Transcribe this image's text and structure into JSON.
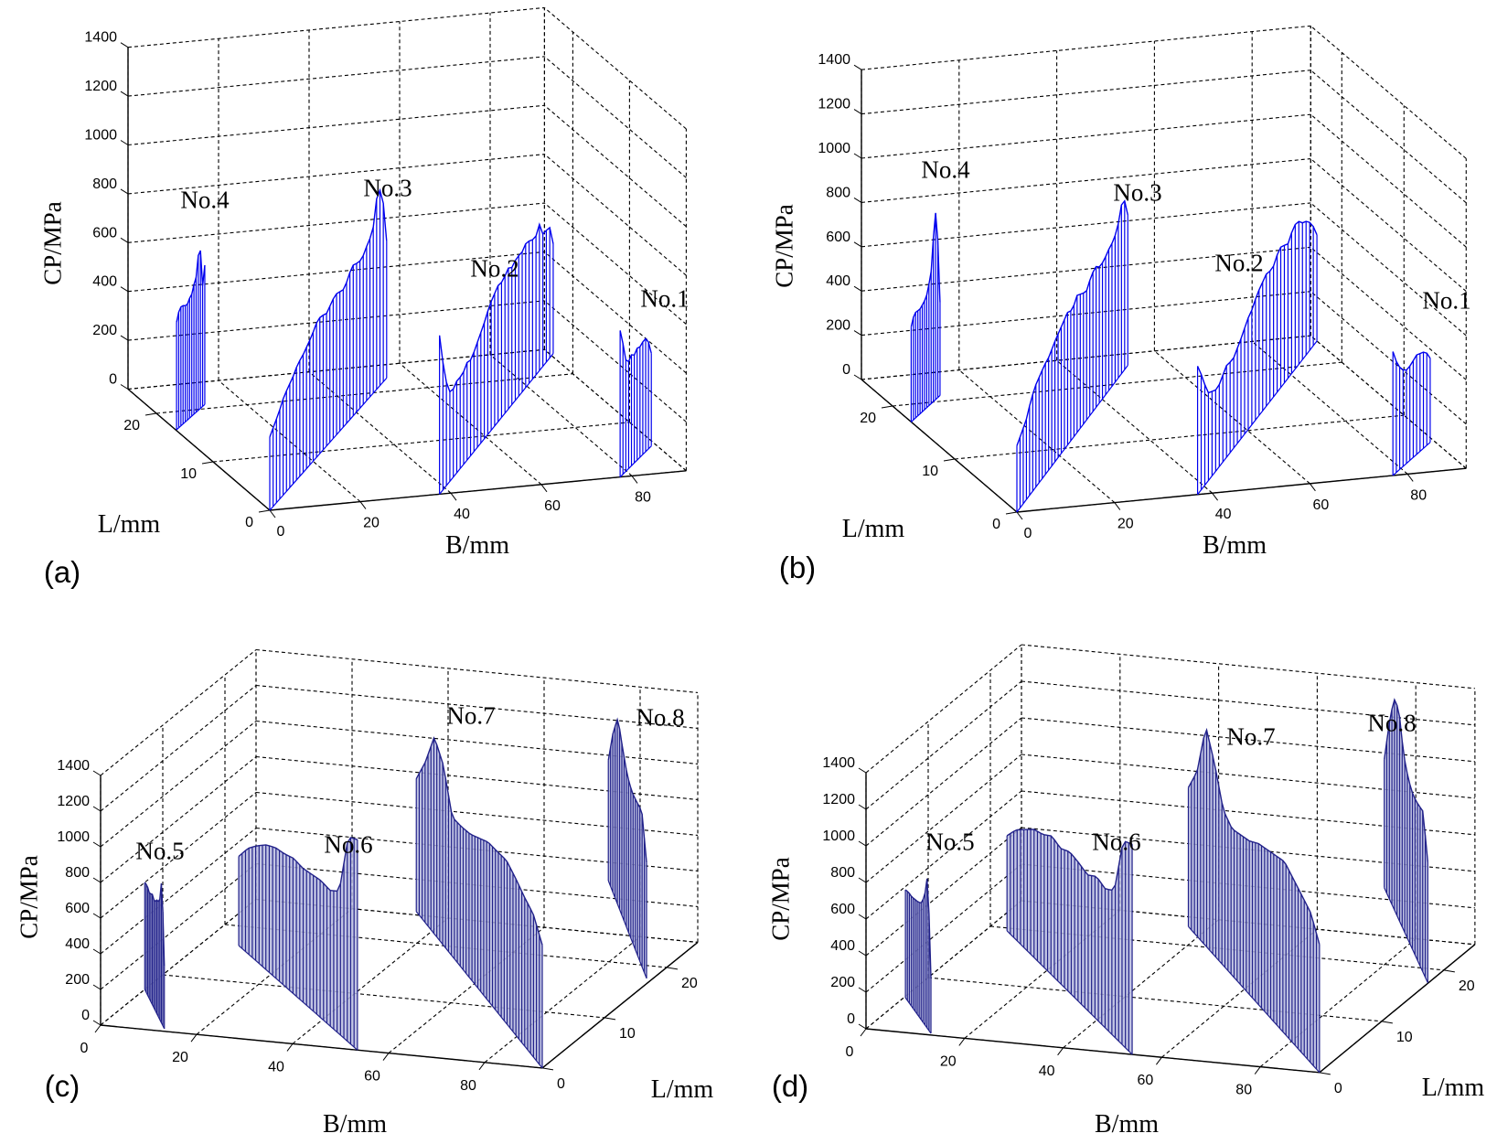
{
  "figure": {
    "panels_count": 4
  },
  "chart_data": [
    {
      "panel": "(a)",
      "type": "stem3",
      "title": "",
      "xlabel": "B/mm",
      "ylabel": "L/mm",
      "zlabel": "CP/MPa",
      "x_ticks": [
        0,
        20,
        40,
        60,
        80
      ],
      "y_ticks": [
        0,
        10,
        20
      ],
      "z_ticks": [
        0,
        200,
        400,
        600,
        800,
        1000,
        1200,
        1400
      ],
      "xlim": [
        0,
        92
      ],
      "ylim": [
        0,
        25
      ],
      "zlim": [
        0,
        1400
      ],
      "grid": true,
      "series": [
        {
          "name": "No.4",
          "start": {
            "B": 0.2,
            "L": 16.6
          },
          "end": {
            "B": 11.7,
            "L": 20.8
          },
          "stems": 14,
          "values": [
            440,
            480,
            490,
            480,
            470,
            490,
            500,
            540,
            560,
            720,
            480,
            570
          ]
        },
        {
          "name": "No.3",
          "start": {
            "B": 0,
            "L": 0
          },
          "end": {
            "B": 54,
            "L": 22.5
          },
          "stems": 36,
          "values": [
            300,
            330,
            360,
            400,
            420,
            440,
            470,
            480,
            500,
            520,
            550,
            560,
            540,
            560,
            580,
            570,
            560,
            600,
            620,
            600,
            610,
            640,
            660,
            800,
            800,
            560
          ]
        },
        {
          "name": "No.2",
          "start": {
            "B": 37.5,
            "L": 0
          },
          "end": {
            "B": 92.8,
            "L": 24.1
          },
          "stems": 34,
          "values": [
            650,
            480,
            370,
            360,
            380,
            370,
            400,
            390,
            420,
            450,
            480,
            520,
            540,
            560,
            550,
            580,
            560,
            580,
            570,
            590,
            580,
            560,
            600,
            520,
            560,
            450
          ]
        },
        {
          "name": "No.1",
          "start": {
            "B": 77.4,
            "L": 0
          },
          "end": {
            "B": 90.8,
            "L": 5.2
          },
          "stems": 12,
          "values": [
            600,
            520,
            420,
            460,
            440,
            460,
            450,
            470,
            450,
            380
          ]
        }
      ]
    },
    {
      "panel": "(b)",
      "type": "stem3",
      "title": "",
      "xlabel": "B/mm",
      "ylabel": "L/mm",
      "zlabel": "CP/MPa",
      "x_ticks": [
        0,
        20,
        40,
        60,
        80
      ],
      "y_ticks": [
        0,
        10,
        20
      ],
      "z_ticks": [
        0,
        200,
        400,
        600,
        800,
        1000,
        1200,
        1400
      ],
      "xlim": [
        0,
        92
      ],
      "ylim": [
        0,
        25
      ],
      "zlim": [
        0,
        1400
      ],
      "grid": true,
      "series": [
        {
          "name": "No.4",
          "start": {
            "B": 0,
            "L": 17
          },
          "end": {
            "B": 11,
            "L": 21
          },
          "stems": 14,
          "values": [
            430,
            470,
            480,
            470,
            480,
            490,
            510,
            560,
            620,
            880,
            760,
            420
          ]
        },
        {
          "name": "No.3",
          "start": {
            "B": 0,
            "L": 0
          },
          "end": {
            "B": 52,
            "L": 23
          },
          "stems": 36,
          "values": [
            300,
            330,
            360,
            420,
            460,
            480,
            500,
            510,
            540,
            560,
            580,
            600,
            580,
            620,
            600,
            580,
            620,
            640,
            610,
            620,
            640,
            650,
            700,
            800,
            680
          ]
        },
        {
          "name": "No.2",
          "start": {
            "B": 37,
            "L": 0
          },
          "end": {
            "B": 92,
            "L": 24
          },
          "stems": 34,
          "values": [
            580,
            500,
            400,
            380,
            360,
            390,
            420,
            400,
            430,
            460,
            500,
            520,
            560,
            580,
            600,
            580,
            620,
            640,
            600,
            640,
            660,
            620,
            600,
            560,
            480
          ]
        },
        {
          "name": "No.1",
          "start": {
            "B": 77,
            "L": 0
          },
          "end": {
            "B": 91,
            "L": 5
          },
          "stems": 12,
          "values": [
            560,
            480,
            440,
            420,
            430,
            450,
            440,
            430,
            380
          ]
        }
      ]
    },
    {
      "panel": "(c)",
      "type": "stem3",
      "title": "",
      "xlabel": "B/mm",
      "ylabel": "L/mm",
      "zlabel": "CP/MPa",
      "x_ticks": [
        0,
        20,
        40,
        60,
        80
      ],
      "y_ticks": [
        0,
        10,
        20
      ],
      "z_ticks": [
        0,
        200,
        400,
        600,
        800,
        1000,
        1200,
        1400
      ],
      "xlim": [
        0,
        92
      ],
      "ylim": [
        0,
        25
      ],
      "zlim": [
        0,
        1400
      ],
      "grid": true,
      "series": [
        {
          "name": "No.5",
          "start": {
            "B": 12.7,
            "L": 0.45
          },
          "end": {
            "B": 0,
            "L": 7.1
          },
          "stems": 14,
          "values": [
            350,
            820,
            650,
            640,
            600,
            620,
            590,
            610,
            600
          ]
        },
        {
          "name": "No.6",
          "start": {
            "B": 53.5,
            "L": 0
          },
          "end": {
            "B": 7.4,
            "L": 16.5
          },
          "stems": 36,
          "values": [
            1180,
            1150,
            800,
            760,
            770,
            760,
            750,
            760,
            740,
            730,
            700,
            650,
            590,
            500
          ]
        },
        {
          "name": "No.7",
          "start": {
            "B": 92,
            "L": 0
          },
          "end": {
            "B": 32.6,
            "L": 25.6
          },
          "stems": 44,
          "values": [
            690,
            800,
            835,
            880,
            915,
            900,
            890,
            850,
            810,
            790,
            780,
            1010,
            1105,
            900,
            745
          ]
        },
        {
          "name": "No.8",
          "start": {
            "B": 90.8,
            "L": 17.7
          },
          "end": {
            "B": 61.2,
            "L": 34.4
          },
          "stems": 18,
          "values": [
            650,
            870,
            850,
            835,
            860,
            945,
            1050,
            900,
            675
          ]
        }
      ]
    },
    {
      "panel": "(d)",
      "type": "stem3",
      "title": "",
      "xlabel": "B/mm",
      "ylabel": "L/mm",
      "zlabel": "CP/MPa",
      "x_ticks": [
        0,
        20,
        40,
        60,
        80
      ],
      "y_ticks": [
        0,
        10,
        20
      ],
      "z_ticks": [
        0,
        200,
        400,
        600,
        800,
        1000,
        1200,
        1400
      ],
      "xlim": [
        0,
        92
      ],
      "ylim": [
        0,
        25
      ],
      "zlim": [
        0,
        1400
      ],
      "grid": true,
      "series": [
        {
          "name": "No.5",
          "start": {
            "B": 12.8,
            "L": 0.3
          },
          "end": {
            "B": 0.3,
            "L": 6.1
          },
          "stems": 14,
          "values": [
            300,
            850,
            700,
            640,
            620,
            610,
            600,
            600,
            590
          ]
        },
        {
          "name": "No.6",
          "start": {
            "B": 54,
            "L": 0
          },
          "end": {
            "B": 4,
            "L": 19.5
          },
          "stems": 38,
          "values": [
            1150,
            1120,
            800,
            760,
            780,
            740,
            760,
            770,
            740,
            760,
            720,
            700,
            650,
            600,
            520
          ]
        },
        {
          "name": "No.7",
          "start": {
            "B": 92,
            "L": 0
          },
          "end": {
            "B": 36,
            "L": 23.3
          },
          "stems": 44,
          "values": [
            700,
            820,
            860,
            900,
            940,
            920,
            900,
            880,
            840,
            820,
            800,
            850,
            1050,
            1200,
            900,
            760
          ]
        },
        {
          "name": "No.8",
          "start": {
            "B": 91.9,
            "L": 17.5
          },
          "end": {
            "B": 63,
            "L": 33.4
          },
          "stems": 18,
          "values": [
            660,
            880,
            860,
            850,
            880,
            960,
            1150,
            1150,
            950,
            700
          ]
        }
      ]
    }
  ],
  "panels": [
    {
      "letter": "(a)",
      "zlabel": "CP/MPa",
      "xlabel": "B/mm",
      "ylabel": "L/mm",
      "labels": [
        "No.4",
        "No.3",
        "No.2",
        "No.1"
      ]
    },
    {
      "letter": "(b)",
      "zlabel": "CP/MPa",
      "xlabel": "B/mm",
      "ylabel": "L/mm",
      "labels": [
        "No.4",
        "No.3",
        "No.2",
        "No.1"
      ]
    },
    {
      "letter": "(c)",
      "zlabel": "CP/MPa",
      "xlabel": "B/mm",
      "ylabel": "L/mm",
      "labels": [
        "No.5",
        "No.6",
        "No.7",
        "No.8"
      ]
    },
    {
      "letter": "(d)",
      "zlabel": "CP/MPa",
      "xlabel": "B/mm",
      "ylabel": "L/mm",
      "labels": [
        "No.5",
        "No.6",
        "No.7",
        "No.8"
      ]
    }
  ],
  "colors": {
    "stem_ab": "#0000ee",
    "stem_cd": "#22228a",
    "fill_cd": "#b7bbdf",
    "grid": "#000000",
    "axis": "#000000"
  }
}
